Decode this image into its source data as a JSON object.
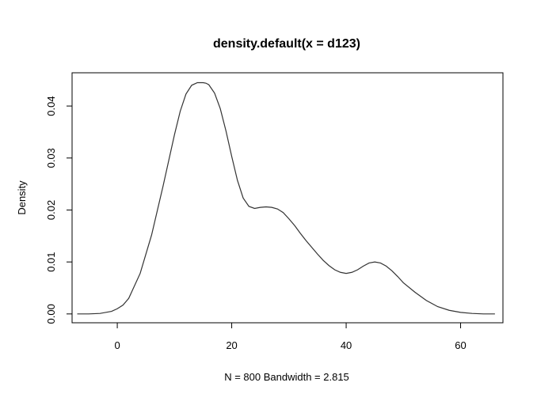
{
  "chart_data": {
    "type": "line",
    "title": "density.default(x = d123)",
    "xlabel": "N = 800   Bandwidth = 2.815",
    "ylabel": "Density",
    "xlim": [
      -7.9,
      67.4
    ],
    "ylim": [
      -0.0017,
      0.0464
    ],
    "x_ticks": [
      0,
      20,
      40,
      60
    ],
    "x_tick_labels": [
      "0",
      "20",
      "40",
      "60"
    ],
    "y_ticks": [
      0.0,
      0.01,
      0.02,
      0.03,
      0.04
    ],
    "y_tick_labels": [
      "0.00",
      "0.01",
      "0.02",
      "0.03",
      "0.04"
    ],
    "grid": false,
    "legend": "none",
    "colors": {
      "line": "#333333",
      "axes": "#000000",
      "background": "#ffffff"
    },
    "series": [
      {
        "x": [
          -7,
          -5,
          -3,
          -1,
          0,
          1,
          2,
          4,
          6,
          8,
          10,
          11,
          12,
          13,
          14,
          15,
          15.5,
          16,
          17,
          18,
          19,
          20,
          21,
          22,
          23,
          24,
          25,
          26,
          27,
          28,
          29,
          30,
          31,
          32,
          33,
          34,
          35,
          36,
          37,
          38,
          39,
          40,
          41,
          42,
          43,
          44,
          45,
          46,
          47,
          48,
          49,
          50,
          52,
          54,
          56,
          58,
          60,
          62,
          64,
          66
        ],
        "y": [
          0.0,
          0.0,
          0.0001,
          0.0005,
          0.001,
          0.0017,
          0.003,
          0.0078,
          0.0152,
          0.0246,
          0.0345,
          0.039,
          0.0423,
          0.044,
          0.0445,
          0.0445,
          0.0444,
          0.0441,
          0.0425,
          0.0395,
          0.0352,
          0.0303,
          0.0257,
          0.0223,
          0.0207,
          0.0203,
          0.0205,
          0.0206,
          0.0205,
          0.0202,
          0.0195,
          0.0183,
          0.017,
          0.0155,
          0.0141,
          0.0128,
          0.0115,
          0.0103,
          0.0093,
          0.0085,
          0.008,
          0.0078,
          0.008,
          0.0085,
          0.0092,
          0.0098,
          0.01,
          0.0098,
          0.0092,
          0.0083,
          0.0072,
          0.006,
          0.0042,
          0.0026,
          0.0014,
          0.0007,
          0.0003,
          0.0001,
          0.0,
          0.0
        ]
      }
    ]
  }
}
